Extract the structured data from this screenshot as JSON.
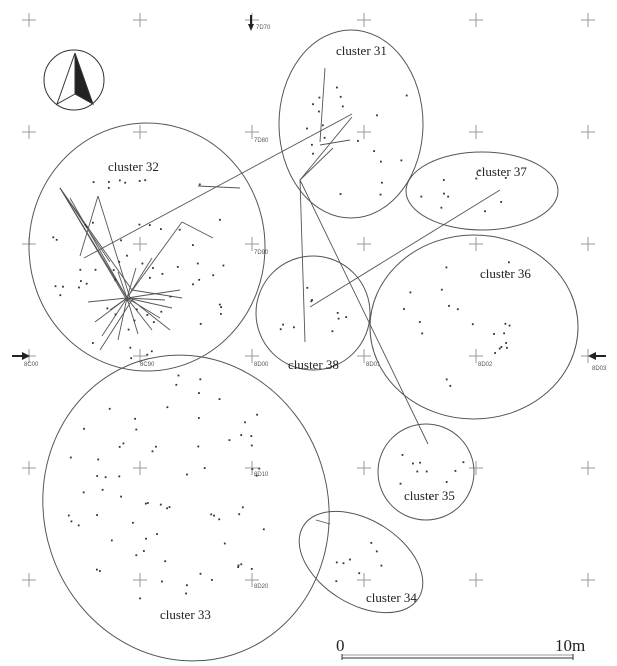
{
  "clusters": [
    {
      "id": "31",
      "label": "cluster 31"
    },
    {
      "id": "32",
      "label": "cluster 32"
    },
    {
      "id": "33",
      "label": "cluster 33"
    },
    {
      "id": "34",
      "label": "cluster 34"
    },
    {
      "id": "35",
      "label": "cluster 35"
    },
    {
      "id": "36",
      "label": "cluster 36"
    },
    {
      "id": "37",
      "label": "cluster 37"
    },
    {
      "id": "38",
      "label": "cluster 38"
    }
  ],
  "grid_labels": [
    "7D70",
    "7D80",
    "7D90",
    "8C00",
    "8C90",
    "8D00",
    "8D10",
    "8D20",
    "8D01",
    "8D02",
    "8D03"
  ],
  "scale_bar": {
    "start": "0",
    "end": "10m"
  },
  "colors": {
    "line": "#555555",
    "dot": "#333333",
    "grid": "#999999"
  }
}
